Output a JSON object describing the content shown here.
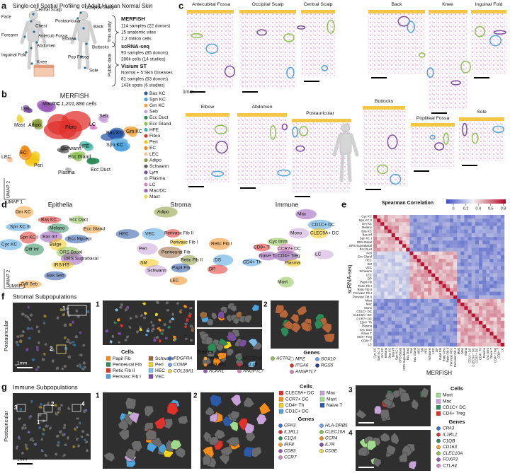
{
  "panel_a": {
    "letter": "a",
    "title": "Single-cell Spatial Profiling of Adult Human Normal Skin",
    "front_sites": [
      "Face",
      "Central Scalp",
      "Chest",
      "Forearm",
      "Antecub Fossa",
      "Abdomen",
      "Inguinal Fold",
      "Knee"
    ],
    "back_sites": [
      "Occipital Scalp",
      "Postauricular",
      "Back",
      "Elbow",
      "Buttocks",
      "Pop Fossa",
      "Sole"
    ],
    "this_study": {
      "label": "This study",
      "heading": "MERFISH",
      "lines": [
        "114 samples (22 donors)",
        "15 anatomic sites",
        "1.2 million cells"
      ]
    },
    "public_data": {
      "label": "Public data",
      "sc_heading": "scRNA-seq",
      "sc_lines": [
        "93 samples (85 donors)",
        "286k cells (14 studies)"
      ],
      "st_heading": "Visium ST",
      "st_lines": [
        "Normal + 5 Skin Diseases",
        "81 samples (63 donors)",
        "143k spots (6 studies)"
      ]
    }
  },
  "panel_b": {
    "letter": "b",
    "title": "MERFISH",
    "subtitle": "n = 1,201,886 cells",
    "x_label": "UMAP 1",
    "y_label": "UMAP 2",
    "clusters": [
      {
        "label": "Bas KC",
        "color": "#2c5aa8"
      },
      {
        "label": "Spn KC",
        "color": "#4fa3dc"
      },
      {
        "label": "Gm KC",
        "color": "#f2a33a"
      },
      {
        "label": "Seb",
        "color": "#c8a2d8"
      },
      {
        "label": "Ecc Duct",
        "color": "#2e8b57"
      },
      {
        "label": "Ecc Gland",
        "color": "#8cc152"
      },
      {
        "label": "HFE",
        "color": "#3fb5a3"
      },
      {
        "label": "Fibro",
        "color": "#e0322c"
      },
      {
        "label": "Peri",
        "color": "#f3c614"
      },
      {
        "label": "EC",
        "color": "#f28c1b"
      },
      {
        "label": "LEC",
        "color": "#f6c3a0"
      },
      {
        "label": "Adipo",
        "color": "#8b9b3a"
      },
      {
        "label": "Schwann",
        "color": "#5b5b5b"
      },
      {
        "label": "Lym",
        "color": "#7b4fa0"
      },
      {
        "label": "Plasma",
        "color": "#b3b3b3"
      },
      {
        "label": "LC",
        "color": "#d986c4"
      },
      {
        "label": "Mac/DC",
        "color": "#9a5bb8"
      },
      {
        "label": "Mast",
        "color": "#e8d84a"
      }
    ]
  },
  "panel_c": {
    "letter": "c",
    "sites": [
      "Antecubital Fossa",
      "Occipital Scalp",
      "Central Scalp",
      "Back",
      "Knee",
      "Inguinal Fold",
      "Elbow",
      "Abdomen",
      "Postauricular",
      "Buttocks",
      "Popliteal Fossa",
      "Sole"
    ],
    "scale": "1mm"
  },
  "panel_d": {
    "letter": "d",
    "x_label": "UMAP 1",
    "y_label": "UMAP 2",
    "groups": [
      {
        "title": "Epithelia",
        "labels": [
          "Gm KC",
          "Bas KC",
          "Spn KC II",
          "Melano",
          "Ecc Duct",
          "Bas Inf",
          "Bulge",
          "Ecc Mycepi",
          "Ecc Gland",
          "Spn KC I",
          "Cyc KC",
          "Diff Inf",
          "ORS Basal",
          "ORS Suprabasal",
          "IRS/HS",
          "Bas Seb",
          "Diff Seb"
        ]
      },
      {
        "title": "Stroma",
        "labels": [
          "Adipo",
          "HEC",
          "VEC",
          "Perivasc Fib II",
          "Perivasc Fib I",
          "Peri",
          "Retic Fib I",
          "Perineural Fib",
          "Retic Fib II",
          "Papil Fib",
          "DS",
          "DP",
          "SM",
          "Schwann",
          "LEC"
        ]
      },
      {
        "title": "Immune",
        "labels": [
          "Mac",
          "CD1C+ DC",
          "CLEC9A+ DC",
          "Mono",
          "Cyc Imm",
          "CD8+ T",
          "CCR7+ DC",
          "CD4+ Treg",
          "Naive T",
          "CD4+ Th",
          "Plasma",
          "LC",
          "Mast"
        ]
      }
    ]
  },
  "panel_e": {
    "letter": "e",
    "title": "Spearman Correlation",
    "colorbar_ticks": [
      0,
      0.2,
      0.4,
      0.6,
      0.8
    ],
    "y_label": "scRNA-seq",
    "x_label": "MERFISH",
    "cell_types": [
      "Cyc KC",
      "Spn KC II",
      "Gm KC",
      "Melano",
      "Bas KC",
      "Bas Inf",
      "Spn KC I",
      "ORS Basal",
      "ORS Suprabasal",
      "Ecc Duct",
      "Peri",
      "Ecc Gland",
      "HEC",
      "SM",
      "VEC",
      "Schwann",
      "LEC",
      "DP",
      "Papil Fib",
      "Retic Fib I",
      "Retic Fib II",
      "Perivasc Fib I",
      "Perivasc Fib II",
      "Mast",
      "Mac",
      "Mono",
      "CD1C+ DC",
      "CLEC9A+ DC",
      "CCR7+ DC",
      "CD4+ Th",
      "Plasma",
      "Cyc Imm",
      "Naive T",
      "CD4+ Treg",
      "CD8+ T",
      "LC"
    ]
  },
  "panel_f": {
    "letter": "f",
    "title": "Stromal Subpopulations",
    "site": "Postauricular",
    "scale": "1mm",
    "insets": [
      "1",
      "2"
    ],
    "cells_heading": "Cells",
    "cells": [
      {
        "label": "Papil Fib",
        "color": "#f28c1b"
      },
      {
        "label": "Perineural Fib",
        "color": "#2e8b57"
      },
      {
        "label": "Retic Fib II",
        "color": "#e0322c"
      },
      {
        "label": "Perivasc Fib I",
        "color": "#4fa3dc"
      },
      {
        "label": "Schwann",
        "color": "#9b6a3c"
      },
      {
        "label": "Peri",
        "color": "#f3d21a"
      },
      {
        "label": "HEC",
        "color": "#7fbce6"
      },
      {
        "label": "VEC",
        "color": "#7b4fa0"
      }
    ],
    "genes_heading": "Genes",
    "genes": [
      {
        "label": "PDGFRA",
        "color": "#3b6fd1"
      },
      {
        "label": "COMP",
        "color": "#6aa3e8"
      },
      {
        "label": "COL18A1",
        "color": "#e8d84a"
      },
      {
        "label": "VWF",
        "color": "#f2a33a"
      },
      {
        "label": "COL6A1",
        "color": "#f28c1b"
      },
      {
        "label": "ACKR1",
        "color": "#9a5bb8"
      },
      {
        "label": "NOTCH3",
        "color": "#2e8b57"
      },
      {
        "label": "CCL19",
        "color": "#e0322c"
      },
      {
        "label": "ANGPTL7",
        "color": "#d986c4"
      },
      {
        "label": "ACTA2",
        "color": "#8cc152"
      }
    ],
    "inset2_genes_heading": "Genes",
    "inset2_genes": [
      {
        "label": "MPZ",
        "color": "#ffffff"
      },
      {
        "label": "SOX10",
        "color": "#6aa3e8"
      },
      {
        "label": "ITGA6",
        "color": "#e0322c"
      },
      {
        "label": "RGS5",
        "color": "#2c3e8a"
      },
      {
        "label": "ANGPTL7",
        "color": "#d986c4"
      }
    ]
  },
  "panel_g": {
    "letter": "g",
    "title": "Immune Subpopulations",
    "site": "Postauricular",
    "scale": "1mm",
    "insets": [
      "1",
      "2",
      "3",
      "4"
    ],
    "cells_heading": "Cells",
    "cells": [
      {
        "label": "CLEC9A+ DC",
        "color": "#e0322c"
      },
      {
        "label": "CCR7+ DC",
        "color": "#f28c1b"
      },
      {
        "label": "CD4+ Th",
        "color": "#f3d21a"
      },
      {
        "label": "CD1C+ DC",
        "color": "#4fa3dc"
      },
      {
        "label": "Mac",
        "color": "#c8a2d8"
      },
      {
        "label": "Mast",
        "color": "#9fd98a"
      },
      {
        "label": "Naive T",
        "color": "#2c5aa8"
      }
    ],
    "genes_heading": "Genes",
    "genes": [
      {
        "label": "CPA3",
        "color": "#3b6fd1"
      },
      {
        "label": "IL1RL1",
        "color": "#e0322c"
      },
      {
        "label": "C1QA",
        "color": "#2e8b57"
      },
      {
        "label": "IRF8",
        "color": "#f2a33a"
      },
      {
        "label": "CD83",
        "color": "#9a5bb8"
      },
      {
        "label": "CCR7",
        "color": "#d986c4"
      },
      {
        "label": "HLA-DRB5",
        "color": "#6aa3e8"
      },
      {
        "label": "CLEC10A",
        "color": "#8cc152"
      },
      {
        "label": "CCR4",
        "color": "#f28c1b"
      },
      {
        "label": "IL7R",
        "color": "#7b4fa0"
      },
      {
        "label": "CD3E",
        "color": "#e8d84a"
      }
    ],
    "inset34_cells_heading": "Cells",
    "inset34_cells": [
      {
        "label": "Mast",
        "color": "#9fd98a"
      },
      {
        "label": "Mac",
        "color": "#c8a2d8"
      },
      {
        "label": "CD1C+ DC",
        "color": "#2e8b57"
      },
      {
        "label": "CD4+ Treg",
        "color": "#e0322c"
      }
    ],
    "inset34_genes_heading": "Genes",
    "inset34_genes": [
      {
        "label": "CPA3",
        "color": "#3b6fd1"
      },
      {
        "label": "IL1RL1",
        "color": "#e0322c"
      },
      {
        "label": "C1QB",
        "color": "#2e8b57"
      },
      {
        "label": "CD163",
        "color": "#f2a33a"
      },
      {
        "label": "CLEC10A",
        "color": "#8cc152"
      },
      {
        "label": "FOXP3",
        "color": "#9a5bb8"
      },
      {
        "label": "CTLA4",
        "color": "#d986c4"
      }
    ]
  }
}
